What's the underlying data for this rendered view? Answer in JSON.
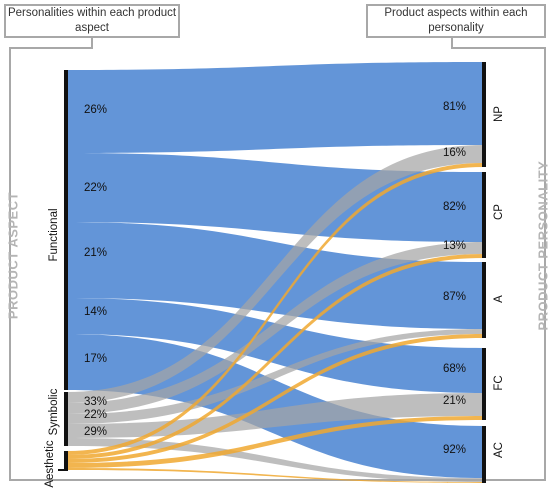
{
  "headers": {
    "left": "Personalities within each product aspect",
    "right": "Product aspects within each personality"
  },
  "side_labels": {
    "left": "PRODUCT ASPECT",
    "right": "PRODUCT PERSONALITY"
  },
  "groups": [
    "Functional",
    "Symbolic",
    "Aesthetic"
  ],
  "nodes": [
    "NP",
    "CP",
    "A",
    "FC",
    "AC"
  ],
  "left_percents": [
    "26%",
    "22%",
    "21%",
    "14%",
    "17%",
    "33%",
    "22%",
    "29%"
  ],
  "right_percents": [
    "81%",
    "16%",
    "82%",
    "13%",
    "87%",
    "68%",
    "21%",
    "92%"
  ],
  "colors": {
    "functional": "#5b8fd6",
    "symbolic": "#a5a5a5",
    "aesthetic": "#f0a830",
    "bar": "#111111",
    "frame": "#a8a8a8"
  },
  "chart_data": {
    "type": "sankey",
    "sources": [
      "Functional",
      "Symbolic",
      "Aesthetic"
    ],
    "targets": [
      "NP",
      "CP",
      "A",
      "FC",
      "AC"
    ],
    "personalities_within_aspect": {
      "Functional": {
        "NP": 26,
        "CP": 22,
        "A": 21,
        "FC": 14,
        "AC": 17
      }
    },
    "aspects_within_personality": {
      "NP": {
        "Functional": 81,
        "Symbolic": 16
      },
      "CP": {
        "Functional": 82,
        "Symbolic": 13
      },
      "A": {
        "Functional": 87
      },
      "FC": {
        "Functional": 68,
        "Symbolic": 21
      },
      "AC": {
        "Functional": 92
      }
    },
    "symbolic_shown": [
      33,
      22,
      29
    ]
  }
}
